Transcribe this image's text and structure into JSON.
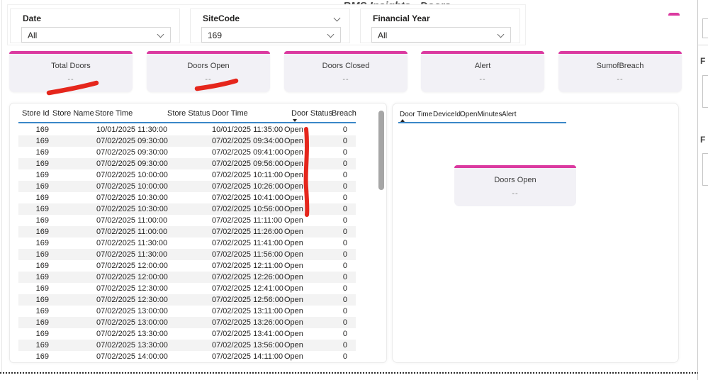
{
  "title": "BMS Insights - Doors",
  "filters": {
    "slicers": [
      {
        "label": "Date",
        "value": "All"
      },
      {
        "label": "SiteCode",
        "value": "169"
      },
      {
        "label": "Financial Year",
        "value": "All"
      }
    ]
  },
  "kpi_cards": [
    {
      "label": "Total Doors",
      "value": "--"
    },
    {
      "label": "Doors Open",
      "value": "--"
    },
    {
      "label": "Doors Closed",
      "value": "--"
    },
    {
      "label": "Alert",
      "value": "--"
    },
    {
      "label": "SumofBreach",
      "value": "--"
    }
  ],
  "main_table": {
    "headers": [
      "Store Id",
      "Store Name",
      "Store Time",
      "Store Status",
      "Door Time",
      "Door Status",
      "Breach"
    ],
    "sorted_by": "Door Status",
    "sort_direction": "desc",
    "rows": [
      {
        "store_id": "169",
        "store_name": "",
        "store_time": "10/01/2025 11:30:00",
        "store_status": "",
        "door_time": "10/01/2025 11:35:00",
        "door_status": "Open",
        "breach": "0"
      },
      {
        "store_id": "169",
        "store_name": "",
        "store_time": "07/02/2025 09:30:00",
        "store_status": "",
        "door_time": "07/02/2025 09:34:00",
        "door_status": "Open",
        "breach": "0"
      },
      {
        "store_id": "169",
        "store_name": "",
        "store_time": "07/02/2025 09:30:00",
        "store_status": "",
        "door_time": "07/02/2025 09:41:00",
        "door_status": "Open",
        "breach": "0"
      },
      {
        "store_id": "169",
        "store_name": "",
        "store_time": "07/02/2025 09:30:00",
        "store_status": "",
        "door_time": "07/02/2025 09:56:00",
        "door_status": "Open",
        "breach": "0"
      },
      {
        "store_id": "169",
        "store_name": "",
        "store_time": "07/02/2025 10:00:00",
        "store_status": "",
        "door_time": "07/02/2025 10:11:00",
        "door_status": "Open",
        "breach": "0"
      },
      {
        "store_id": "169",
        "store_name": "",
        "store_time": "07/02/2025 10:00:00",
        "store_status": "",
        "door_time": "07/02/2025 10:26:00",
        "door_status": "Open",
        "breach": "0"
      },
      {
        "store_id": "169",
        "store_name": "",
        "store_time": "07/02/2025 10:30:00",
        "store_status": "",
        "door_time": "07/02/2025 10:41:00",
        "door_status": "Open",
        "breach": "0"
      },
      {
        "store_id": "169",
        "store_name": "",
        "store_time": "07/02/2025 10:30:00",
        "store_status": "",
        "door_time": "07/02/2025 10:56:00",
        "door_status": "Open",
        "breach": "0"
      },
      {
        "store_id": "169",
        "store_name": "",
        "store_time": "07/02/2025 11:00:00",
        "store_status": "",
        "door_time": "07/02/2025 11:11:00",
        "door_status": "Open",
        "breach": "0"
      },
      {
        "store_id": "169",
        "store_name": "",
        "store_time": "07/02/2025 11:00:00",
        "store_status": "",
        "door_time": "07/02/2025 11:26:00",
        "door_status": "Open",
        "breach": "0"
      },
      {
        "store_id": "169",
        "store_name": "",
        "store_time": "07/02/2025 11:30:00",
        "store_status": "",
        "door_time": "07/02/2025 11:41:00",
        "door_status": "Open",
        "breach": "0"
      },
      {
        "store_id": "169",
        "store_name": "",
        "store_time": "07/02/2025 11:30:00",
        "store_status": "",
        "door_time": "07/02/2025 11:56:00",
        "door_status": "Open",
        "breach": "0"
      },
      {
        "store_id": "169",
        "store_name": "",
        "store_time": "07/02/2025 12:00:00",
        "store_status": "",
        "door_time": "07/02/2025 12:11:00",
        "door_status": "Open",
        "breach": "0"
      },
      {
        "store_id": "169",
        "store_name": "",
        "store_time": "07/02/2025 12:00:00",
        "store_status": "",
        "door_time": "07/02/2025 12:26:00",
        "door_status": "Open",
        "breach": "0"
      },
      {
        "store_id": "169",
        "store_name": "",
        "store_time": "07/02/2025 12:30:00",
        "store_status": "",
        "door_time": "07/02/2025 12:41:00",
        "door_status": "Open",
        "breach": "0"
      },
      {
        "store_id": "169",
        "store_name": "",
        "store_time": "07/02/2025 12:30:00",
        "store_status": "",
        "door_time": "07/02/2025 12:56:00",
        "door_status": "Open",
        "breach": "0"
      },
      {
        "store_id": "169",
        "store_name": "",
        "store_time": "07/02/2025 13:00:00",
        "store_status": "",
        "door_time": "07/02/2025 13:11:00",
        "door_status": "Open",
        "breach": "0"
      },
      {
        "store_id": "169",
        "store_name": "",
        "store_time": "07/02/2025 13:00:00",
        "store_status": "",
        "door_time": "07/02/2025 13:26:00",
        "door_status": "Open",
        "breach": "0"
      },
      {
        "store_id": "169",
        "store_name": "",
        "store_time": "07/02/2025 13:30:00",
        "store_status": "",
        "door_time": "07/02/2025 13:41:00",
        "door_status": "Open",
        "breach": "0"
      },
      {
        "store_id": "169",
        "store_name": "",
        "store_time": "07/02/2025 13:30:00",
        "store_status": "",
        "door_time": "07/02/2025 13:56:00",
        "door_status": "Open",
        "breach": "0"
      },
      {
        "store_id": "169",
        "store_name": "",
        "store_time": "07/02/2025 14:00:00",
        "store_status": "",
        "door_time": "07/02/2025 14:11:00",
        "door_status": "Open",
        "breach": "0"
      }
    ]
  },
  "detail_panel": {
    "headers": [
      "Door Time",
      "DeviceId",
      "OpenMinutes",
      "Alert"
    ],
    "sorted_by": "Door Time",
    "sort_direction": "asc",
    "rows": [],
    "card": {
      "label": "Doors Open",
      "value": "--"
    }
  },
  "right_pane": {
    "labels": [
      "F",
      "F"
    ]
  },
  "annotations": {
    "marks": [
      "red-underline-total-doors",
      "red-underline-doors-open",
      "red-vertical-door-status"
    ]
  },
  "colors": {
    "accent_pink": "#DB3AA0",
    "header_underline_blue": "#3A87C8",
    "annotation_red": "#E5261C",
    "card_bg": "#F2F1F6"
  }
}
